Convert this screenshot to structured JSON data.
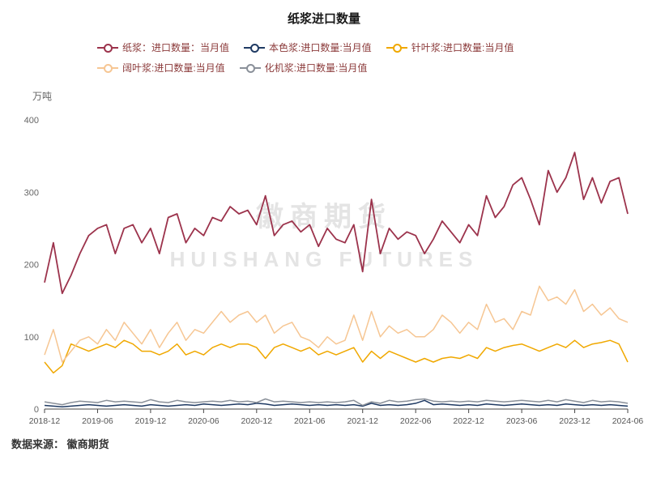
{
  "title": "纸浆进口数量",
  "y_axis": {
    "unit_label": "万吨",
    "ticks": [
      0,
      100,
      200,
      300,
      400
    ],
    "max": 400
  },
  "x_axis": {
    "tick_labels": [
      "2018-12",
      "2019-06",
      "2019-12",
      "2020-06",
      "2020-12",
      "2021-06",
      "2021-12",
      "2022-06",
      "2022-12",
      "2023-06",
      "2023-12",
      "2024-06"
    ],
    "tick_step": 6
  },
  "watermark": {
    "line1": "徽商期货",
    "line2": "HUISHANG FUTURES"
  },
  "footer": {
    "source_label": "数据来源： 徽商期货"
  },
  "chart_data": {
    "type": "line",
    "title": "纸浆进口数量",
    "ylabel": "万吨",
    "ylim": [
      0,
      400
    ],
    "grid": false,
    "legend_position": "top",
    "x": [
      "2018-12",
      "2019-01",
      "2019-02",
      "2019-03",
      "2019-04",
      "2019-05",
      "2019-06",
      "2019-07",
      "2019-08",
      "2019-09",
      "2019-10",
      "2019-11",
      "2019-12",
      "2020-01",
      "2020-02",
      "2020-03",
      "2020-04",
      "2020-05",
      "2020-06",
      "2020-07",
      "2020-08",
      "2020-09",
      "2020-10",
      "2020-11",
      "2020-12",
      "2021-01",
      "2021-02",
      "2021-03",
      "2021-04",
      "2021-05",
      "2021-06",
      "2021-07",
      "2021-08",
      "2021-09",
      "2021-10",
      "2021-11",
      "2021-12",
      "2022-01",
      "2022-02",
      "2022-03",
      "2022-04",
      "2022-05",
      "2022-06",
      "2022-07",
      "2022-08",
      "2022-09",
      "2022-10",
      "2022-11",
      "2022-12",
      "2023-01",
      "2023-02",
      "2023-03",
      "2023-04",
      "2023-05",
      "2023-06",
      "2023-07",
      "2023-08",
      "2023-09",
      "2023-10",
      "2023-11",
      "2023-12",
      "2024-01",
      "2024-02",
      "2024-03",
      "2024-04",
      "2024-05",
      "2024-06"
    ],
    "series": [
      {
        "name": "纸浆：进口数量：当月值",
        "color": "#9c334c",
        "values": [
          175,
          230,
          160,
          185,
          215,
          240,
          250,
          255,
          215,
          250,
          255,
          230,
          250,
          215,
          265,
          270,
          230,
          250,
          240,
          265,
          260,
          280,
          270,
          275,
          255,
          295,
          240,
          255,
          260,
          245,
          255,
          225,
          250,
          235,
          230,
          255,
          190,
          290,
          215,
          250,
          235,
          245,
          240,
          215,
          235,
          260,
          245,
          230,
          255,
          240,
          295,
          265,
          280,
          310,
          320,
          290,
          255,
          330,
          300,
          320,
          355,
          290,
          320,
          285,
          315,
          320,
          270
        ]
      },
      {
        "name": "本色浆:进口数量:当月值",
        "color": "#1f3a63",
        "values": [
          5,
          4,
          3,
          4,
          5,
          6,
          5,
          4,
          5,
          6,
          5,
          4,
          6,
          5,
          4,
          5,
          6,
          5,
          7,
          6,
          5,
          6,
          7,
          6,
          8,
          7,
          5,
          6,
          7,
          6,
          5,
          6,
          5,
          6,
          5,
          6,
          4,
          8,
          5,
          6,
          5,
          6,
          8,
          12,
          6,
          7,
          6,
          5,
          6,
          5,
          7,
          6,
          5,
          6,
          7,
          6,
          5,
          6,
          5,
          7,
          6,
          5,
          6,
          5,
          6,
          5,
          4
        ]
      },
      {
        "name": "针叶浆:进口数量:当月值",
        "color": "#f0a800",
        "values": [
          65,
          50,
          60,
          90,
          85,
          80,
          85,
          90,
          85,
          95,
          90,
          80,
          80,
          75,
          80,
          90,
          75,
          80,
          75,
          85,
          90,
          85,
          90,
          90,
          85,
          70,
          85,
          90,
          85,
          80,
          85,
          75,
          80,
          75,
          80,
          85,
          65,
          80,
          70,
          80,
          75,
          70,
          65,
          70,
          65,
          70,
          72,
          70,
          75,
          70,
          85,
          80,
          85,
          88,
          90,
          85,
          80,
          85,
          90,
          85,
          95,
          85,
          90,
          92,
          95,
          90,
          65
        ]
      },
      {
        "name": "阔叶浆:进口数量:当月值",
        "color": "#f6c693",
        "values": [
          75,
          110,
          65,
          80,
          95,
          100,
          90,
          110,
          95,
          120,
          105,
          90,
          110,
          85,
          105,
          120,
          95,
          110,
          105,
          120,
          135,
          120,
          130,
          135,
          120,
          130,
          105,
          115,
          120,
          100,
          95,
          85,
          100,
          90,
          95,
          130,
          95,
          135,
          100,
          115,
          105,
          110,
          100,
          100,
          110,
          130,
          120,
          105,
          120,
          110,
          145,
          120,
          125,
          110,
          135,
          130,
          170,
          150,
          155,
          145,
          165,
          135,
          145,
          130,
          140,
          125,
          120
        ]
      },
      {
        "name": "化机浆:进口数量:当月值",
        "color": "#8a9099",
        "values": [
          10,
          8,
          6,
          9,
          11,
          10,
          9,
          12,
          10,
          11,
          10,
          9,
          13,
          10,
          9,
          12,
          10,
          9,
          10,
          11,
          10,
          12,
          10,
          11,
          9,
          14,
          10,
          11,
          10,
          9,
          10,
          9,
          10,
          9,
          10,
          12,
          5,
          10,
          8,
          12,
          10,
          11,
          13,
          14,
          11,
          10,
          11,
          10,
          11,
          10,
          12,
          11,
          10,
          11,
          12,
          11,
          10,
          12,
          10,
          13,
          11,
          9,
          12,
          10,
          11,
          10,
          8
        ]
      }
    ]
  }
}
